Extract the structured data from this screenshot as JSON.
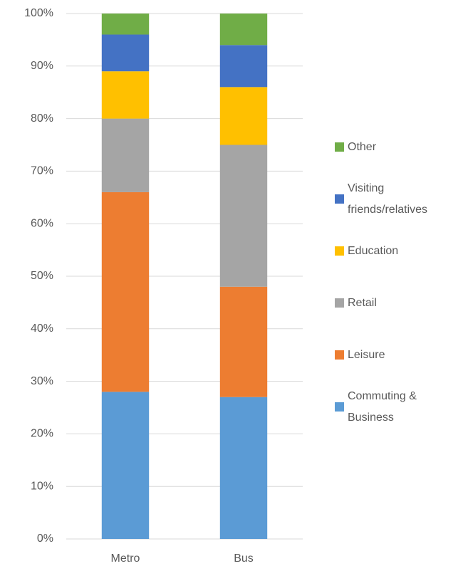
{
  "chart_data": {
    "type": "stacked_bar",
    "categories": [
      "Metro",
      "Bus"
    ],
    "series": [
      {
        "name": "Commuting & Business",
        "color": "#5b9bd5",
        "values": [
          28,
          27
        ]
      },
      {
        "name": "Leisure",
        "color": "#ed7d31",
        "values": [
          38,
          21
        ]
      },
      {
        "name": "Retail",
        "color": "#a5a5a5",
        "values": [
          14,
          27
        ]
      },
      {
        "name": "Education",
        "color": "#ffc000",
        "values": [
          9,
          11
        ]
      },
      {
        "name": "Visiting friends/relatives",
        "color": "#4472c4",
        "values": [
          7,
          8
        ]
      },
      {
        "name": "Other",
        "color": "#70ad47",
        "values": [
          4,
          6
        ]
      }
    ],
    "ylim": [
      0,
      100
    ],
    "yticks": [
      {
        "value": 0,
        "label": "0%"
      },
      {
        "value": 10,
        "label": "10%"
      },
      {
        "value": 20,
        "label": "20%"
      },
      {
        "value": 30,
        "label": "30%"
      },
      {
        "value": 40,
        "label": "40%"
      },
      {
        "value": 50,
        "label": "50%"
      },
      {
        "value": 60,
        "label": "60%"
      },
      {
        "value": 70,
        "label": "70%"
      },
      {
        "value": 80,
        "label": "80%"
      },
      {
        "value": 90,
        "label": "90%"
      },
      {
        "value": 100,
        "label": "100%"
      }
    ],
    "grid": true,
    "legend": "right"
  }
}
